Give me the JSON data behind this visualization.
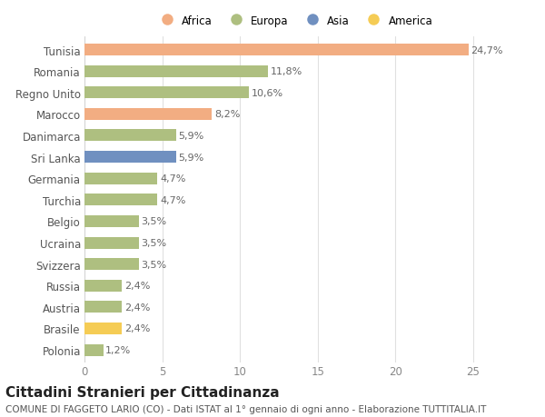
{
  "countries": [
    "Tunisia",
    "Romania",
    "Regno Unito",
    "Marocco",
    "Danimarca",
    "Sri Lanka",
    "Germania",
    "Turchia",
    "Belgio",
    "Ucraina",
    "Svizzera",
    "Russia",
    "Austria",
    "Brasile",
    "Polonia"
  ],
  "values": [
    24.7,
    11.8,
    10.6,
    8.2,
    5.9,
    5.9,
    4.7,
    4.7,
    3.5,
    3.5,
    3.5,
    2.4,
    2.4,
    2.4,
    1.2
  ],
  "labels": [
    "24,7%",
    "11,8%",
    "10,6%",
    "8,2%",
    "5,9%",
    "5,9%",
    "4,7%",
    "4,7%",
    "3,5%",
    "3,5%",
    "3,5%",
    "2,4%",
    "2,4%",
    "2,4%",
    "1,2%"
  ],
  "colors": [
    "#F2AD82",
    "#AEBF80",
    "#AEBF80",
    "#F2AD82",
    "#AEBF80",
    "#7090C0",
    "#AEBF80",
    "#AEBF80",
    "#AEBF80",
    "#AEBF80",
    "#AEBF80",
    "#AEBF80",
    "#AEBF80",
    "#F5CC55",
    "#AEBF80"
  ],
  "legend_labels": [
    "Africa",
    "Europa",
    "Asia",
    "America"
  ],
  "legend_colors": [
    "#F2AD82",
    "#AEBF80",
    "#7090C0",
    "#F5CC55"
  ],
  "title": "Cittadini Stranieri per Cittadinanza",
  "subtitle": "COMUNE DI FAGGETO LARIO (CO) - Dati ISTAT al 1° gennaio di ogni anno - Elaborazione TUTTITALIA.IT",
  "xlim": [
    0,
    27
  ],
  "xticks": [
    0,
    5,
    10,
    15,
    20,
    25
  ],
  "background_color": "#ffffff",
  "grid_color": "#e0e0e0",
  "bar_height": 0.55,
  "title_fontsize": 11,
  "subtitle_fontsize": 7.5,
  "label_fontsize": 8,
  "ytick_fontsize": 8.5,
  "xtick_fontsize": 8.5
}
